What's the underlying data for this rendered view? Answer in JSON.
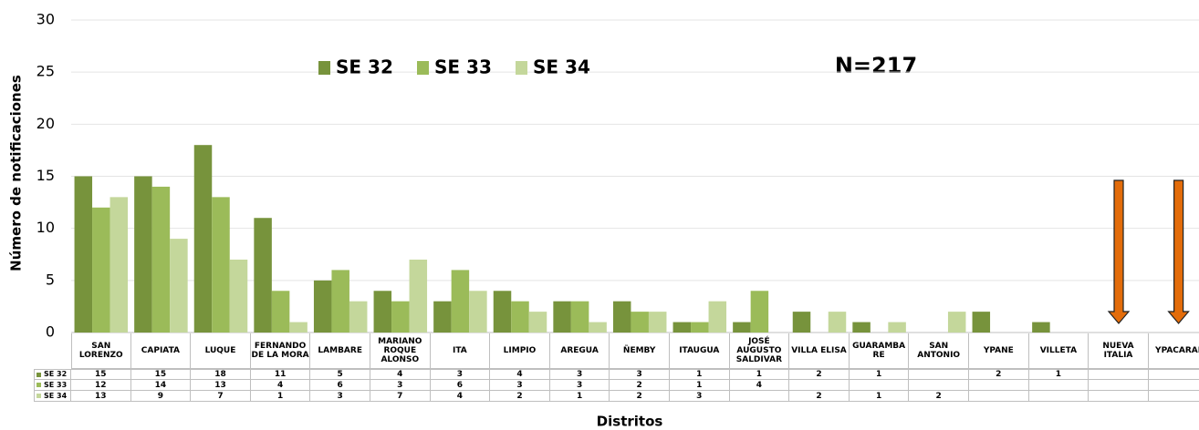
{
  "chart_data": {
    "type": "bar",
    "annotation": "N=217",
    "y_label": "Número de notificaciones",
    "x_label": "Distritos",
    "categories": [
      "SAN LORENZO",
      "CAPIATA",
      "LUQUE",
      "FERNANDO DE LA MORA",
      "LAMBARE",
      "MARIANO ROQUE ALONSO",
      "ITA",
      "LIMPIO",
      "AREGUA",
      "ÑEMBY",
      "ITAUGUA",
      "JOSÉ AUGUSTO SALDIVAR",
      "VILLA ELISA",
      "GUARAMBARE",
      "SAN ANTONIO",
      "YPANE",
      "VILLETA",
      "NUEVA ITALIA",
      "YPACARAI"
    ],
    "series": [
      {
        "name": "SE 32",
        "color": "#77933c",
        "values": [
          15,
          15,
          18,
          11,
          5,
          4,
          3,
          4,
          3,
          3,
          1,
          1,
          2,
          1,
          null,
          2,
          1,
          null,
          null
        ]
      },
      {
        "name": "SE 33",
        "color": "#9bbb59",
        "values": [
          12,
          14,
          13,
          4,
          6,
          3,
          6,
          3,
          3,
          2,
          1,
          4,
          null,
          null,
          null,
          null,
          null,
          null,
          null
        ]
      },
      {
        "name": "SE 34",
        "color": "#c4d79b",
        "values": [
          13,
          9,
          7,
          1,
          3,
          7,
          4,
          2,
          1,
          2,
          3,
          null,
          2,
          1,
          2,
          null,
          null,
          null,
          null
        ]
      }
    ],
    "ylim": [
      0,
      30
    ],
    "yticks": [
      0,
      5,
      10,
      15,
      20,
      25,
      30
    ],
    "grid": true
  }
}
